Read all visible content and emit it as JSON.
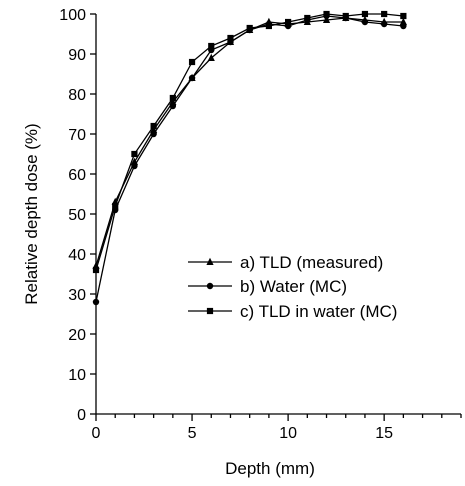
{
  "chart_data": {
    "type": "line",
    "title": "",
    "xlabel": "Depth (mm)",
    "ylabel": "Relative depth dose (%)",
    "xlim": [
      0,
      19
    ],
    "ylim": [
      0,
      100
    ],
    "x_ticks": [
      0,
      5,
      10,
      15
    ],
    "x_tick_labels": [
      "0",
      "5",
      "10",
      "15"
    ],
    "y_ticks": [
      0,
      10,
      20,
      30,
      40,
      50,
      60,
      70,
      80,
      90,
      100
    ],
    "y_tick_labels": [
      "0",
      "10",
      "20",
      "30",
      "40",
      "50",
      "60",
      "70",
      "80",
      "90",
      "100"
    ],
    "grid": false,
    "legend_position": "center-right",
    "series": [
      {
        "name": "a) TLD (measured)",
        "marker": "triangle",
        "x": [
          0,
          1,
          2,
          3,
          4,
          5,
          6,
          7,
          8,
          9,
          10,
          11,
          12,
          13,
          14,
          15,
          16
        ],
        "y": [
          37,
          53,
          63,
          71,
          78,
          84,
          89,
          93,
          96,
          98,
          97.5,
          98,
          98.5,
          99,
          98.5,
          98,
          98
        ]
      },
      {
        "name": "b) Water (MC)",
        "marker": "circle",
        "x": [
          0,
          1,
          2,
          3,
          4,
          5,
          6,
          7,
          8,
          9,
          10,
          11,
          12,
          13,
          14,
          15,
          16
        ],
        "y": [
          28,
          51,
          62,
          70,
          77,
          84,
          91,
          93,
          96,
          97.5,
          97,
          98.5,
          99.5,
          99,
          98,
          97.5,
          97
        ]
      },
      {
        "name": "c) TLD in water (MC)",
        "marker": "square",
        "x": [
          0,
          1,
          2,
          3,
          4,
          5,
          6,
          7,
          8,
          9,
          10,
          11,
          12,
          13,
          14,
          15,
          16
        ],
        "y": [
          36,
          52,
          65,
          72,
          79,
          88,
          92,
          94,
          96.5,
          97,
          98,
          99,
          100,
          99.5,
          100,
          100,
          99.5
        ]
      }
    ]
  }
}
